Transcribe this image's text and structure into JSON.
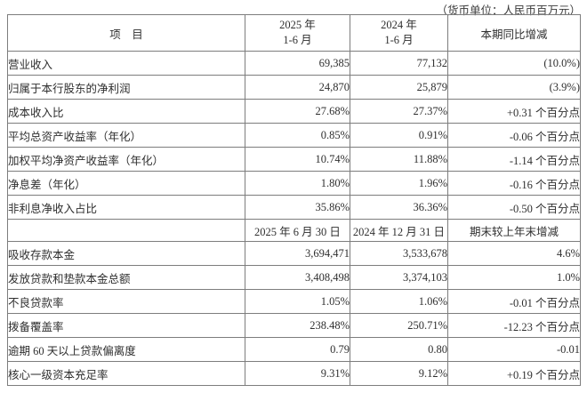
{
  "unit_note": "（货币单位：人民币百万元）",
  "colors": {
    "text": "#2f2f2f",
    "border": "#7d7d7d",
    "background": "#ffffff"
  },
  "header1": {
    "item": "项　目",
    "current_line1": "2025 年",
    "current_line2": "1-6 月",
    "prior_line1": "2024 年",
    "prior_line2": "1-6 月",
    "change": "本期同比增减"
  },
  "rows1": [
    {
      "label": "营业收入",
      "current": "69,385",
      "prior": "77,132",
      "change": "(10.0%)"
    },
    {
      "label": "归属于本行股东的净利润",
      "current": "24,870",
      "prior": "25,879",
      "change": "(3.9%)"
    },
    {
      "label": "成本收入比",
      "current": "27.68%",
      "prior": "27.37%",
      "change": "+0.31 个百分点"
    },
    {
      "label": "平均总资产收益率（年化）",
      "current": "0.85%",
      "prior": "0.91%",
      "change": "-0.06 个百分点"
    },
    {
      "label": "加权平均净资产收益率（年化）",
      "current": "10.74%",
      "prior": "11.88%",
      "change": "-1.14 个百分点"
    },
    {
      "label": "净息差（年化）",
      "current": "1.80%",
      "prior": "1.96%",
      "change": "-0.16 个百分点"
    },
    {
      "label": "非利息净收入占比",
      "current": "35.86%",
      "prior": "36.36%",
      "change": "-0.50 个百分点"
    }
  ],
  "header2": {
    "item": "",
    "date_current": "2025 年 6 月 30 日",
    "date_prior": "2024 年 12 月 31 日",
    "change": "期末较上年末增减"
  },
  "rows2": [
    {
      "label": "吸收存款本金",
      "current": "3,694,471",
      "prior": "3,533,678",
      "change": "4.6%"
    },
    {
      "label": "发放贷款和垫款本金总额",
      "current": "3,408,498",
      "prior": "3,374,103",
      "change": "1.0%"
    },
    {
      "label": "不良贷款率",
      "current": "1.05%",
      "prior": "1.06%",
      "change": "-0.01 个百分点"
    },
    {
      "label": "拨备覆盖率",
      "current": "238.48%",
      "prior": "250.71%",
      "change": "-12.23 个百分点"
    },
    {
      "label": "逾期 60 天以上贷款偏离度",
      "current": "0.79",
      "prior": "0.80",
      "change": "-0.01"
    },
    {
      "label": "核心一级资本充足率",
      "current": "9.31%",
      "prior": "9.12%",
      "change": "+0.19 个百分点"
    }
  ]
}
